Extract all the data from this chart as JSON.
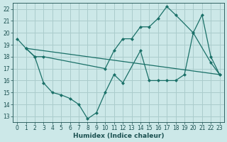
{
  "xlabel": "Humidex (Indice chaleur)",
  "background_color": "#cce8e8",
  "grid_color": "#aacccc",
  "line_color": "#1a7068",
  "xlim": [
    -0.5,
    23.5
  ],
  "ylim": [
    12.5,
    22.5
  ],
  "xticks": [
    0,
    1,
    2,
    3,
    4,
    5,
    6,
    7,
    8,
    9,
    10,
    11,
    12,
    13,
    14,
    15,
    16,
    17,
    18,
    19,
    20,
    21,
    22,
    23
  ],
  "yticks": [
    13,
    14,
    15,
    16,
    17,
    18,
    19,
    20,
    21,
    22
  ],
  "line1_x": [
    0,
    1,
    2,
    3,
    10,
    11,
    12,
    13,
    14,
    15,
    16,
    17,
    18,
    20,
    21,
    22,
    23
  ],
  "line1_y": [
    19.5,
    18.7,
    18.0,
    18.0,
    17.0,
    18.5,
    19.5,
    19.5,
    20.5,
    20.5,
    21.2,
    22.2,
    21.5,
    20.0,
    21.5,
    18.0,
    16.5
  ],
  "line2_x": [
    1,
    2,
    3,
    4,
    5,
    6,
    7,
    8,
    9,
    10,
    11,
    12,
    14,
    15,
    16,
    17,
    18,
    19,
    20,
    22,
    23
  ],
  "line2_y": [
    18.7,
    18.0,
    15.8,
    15.0,
    14.8,
    14.5,
    14.0,
    12.8,
    13.3,
    15.0,
    16.5,
    15.8,
    18.5,
    16.0,
    16.0,
    16.0,
    16.0,
    16.5,
    20.0,
    17.5,
    16.5
  ],
  "line3_x": [
    1,
    23
  ],
  "line3_y": [
    18.7,
    16.5
  ]
}
